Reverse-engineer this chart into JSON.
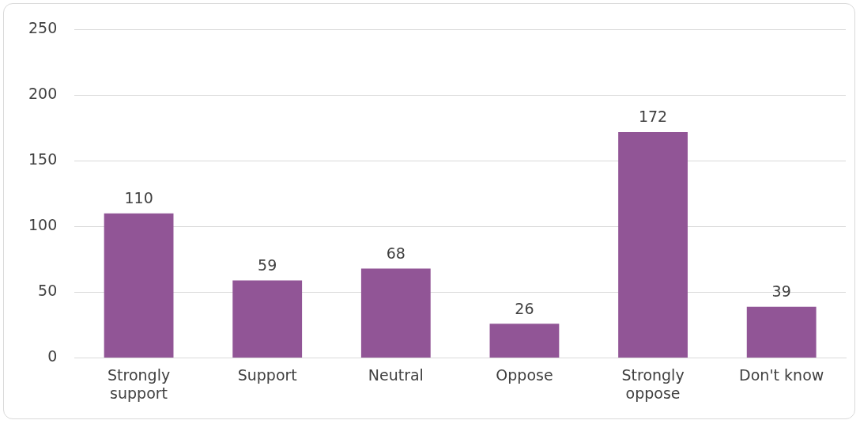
{
  "chart_data": {
    "type": "bar",
    "categories": [
      "Strongly support",
      "Support",
      "Neutral",
      "Oppose",
      "Strongly oppose",
      "Don't know"
    ],
    "values": [
      110,
      59,
      68,
      26,
      172,
      39
    ],
    "color": "#915596",
    "ylim": [
      0,
      250
    ],
    "yticks": [
      0,
      50,
      100,
      150,
      200,
      250
    ],
    "grid": "y",
    "legend": false,
    "data_labels": true
  }
}
